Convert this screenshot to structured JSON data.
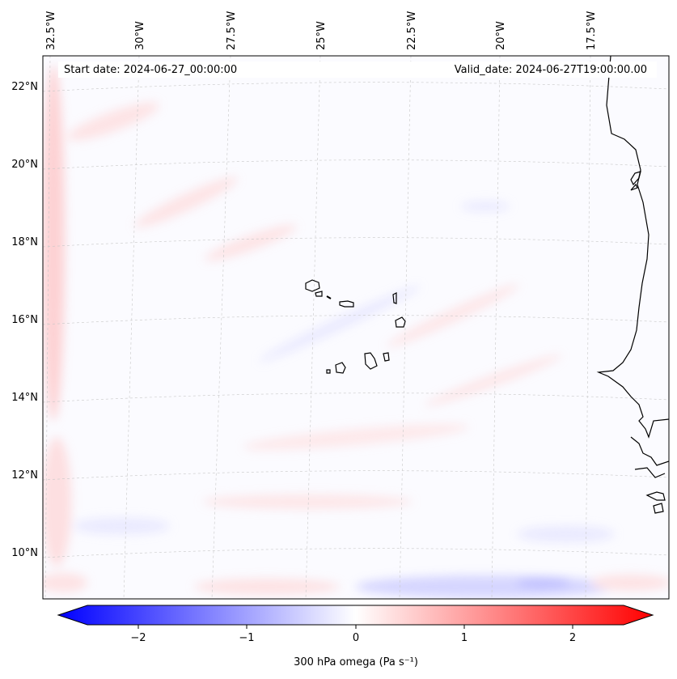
{
  "map": {
    "header": {
      "start_date": "Start date: 2024-06-27_00:00:00",
      "valid_date": "Valid_date: 2024-06-27T19:00:00.00"
    },
    "longitude_labels": [
      "32.5°W",
      "30°W",
      "27.5°W",
      "25°W",
      "22.5°W",
      "20°W",
      "17.5°W"
    ],
    "latitude_labels": [
      "22°N",
      "20°N",
      "18°N",
      "16°N",
      "14°N",
      "12°N",
      "10°N"
    ],
    "field": "300 hPa omega",
    "colors": {
      "negative": "#0000ff",
      "neutral": "#ffffff",
      "positive": "#ff0000",
      "coastline": "#000000"
    }
  },
  "colorbar": {
    "label": "300 hPa omega (Pa s⁻¹)",
    "min": -2.5,
    "max": 2.5,
    "ticks": [
      "−2",
      "−1",
      "0",
      "1",
      "2"
    ]
  }
}
